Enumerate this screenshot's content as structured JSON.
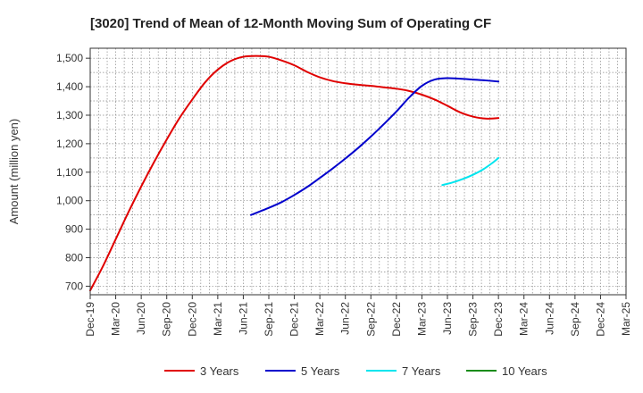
{
  "chart_data": {
    "type": "line",
    "title": "[3020]  Trend of Mean of 12-Month Moving Sum of Operating CF",
    "xlabel": "",
    "ylabel": "Amount (million yen)",
    "ylim": [
      670,
      1535
    ],
    "yticks": [
      700,
      800,
      900,
      1000,
      1100,
      1200,
      1300,
      1400,
      1500
    ],
    "ytick_labels": [
      "700",
      "800",
      "900",
      "1,000",
      "1,100",
      "1,200",
      "1,300",
      "1,400",
      "1,500"
    ],
    "x_categories": [
      "Dec-19",
      "Mar-20",
      "Jun-20",
      "Sep-20",
      "Dec-20",
      "Mar-21",
      "Jun-21",
      "Sep-21",
      "Dec-21",
      "Mar-22",
      "Jun-22",
      "Sep-22",
      "Dec-22",
      "Mar-23",
      "Jun-23",
      "Sep-23",
      "Dec-23",
      "Mar-24",
      "Jun-24",
      "Sep-24",
      "Dec-24",
      "Mar-25"
    ],
    "grid": true,
    "legend_position": "bottom",
    "series": [
      {
        "name": "3 Years",
        "color": "#e00000",
        "x": [
          0,
          0.5,
          1,
          1.5,
          2,
          2.5,
          3,
          3.5,
          4,
          4.5,
          5,
          5.5,
          6,
          6.5,
          7,
          7.5,
          8,
          8.5,
          9,
          9.5,
          10,
          10.5,
          11,
          11.5,
          12,
          12.5,
          13,
          13.5,
          14,
          14.5,
          15,
          15.5,
          16,
          16.5,
          17
        ],
        "values": [
          685,
          770,
          865,
          960,
          1050,
          1135,
          1215,
          1290,
          1355,
          1415,
          1460,
          1490,
          1505,
          1508,
          1505,
          1492,
          1475,
          1452,
          1433,
          1420,
          1412,
          1407,
          1403,
          1398,
          1393,
          1385,
          1372,
          1355,
          1333,
          1310,
          1295,
          1288,
          1290,
          null,
          null
        ],
        "x_override": [
          0,
          0.5,
          1,
          1.5,
          2,
          2.5,
          3,
          3.5,
          4,
          4.5,
          5,
          5.5,
          6,
          6.5,
          7,
          7.5,
          8,
          8.5,
          9,
          9.5,
          10,
          10.5,
          11,
          11.5,
          12,
          12.5,
          13,
          13.5,
          14,
          14.5,
          15,
          15.5,
          16
        ]
      },
      {
        "name": "5 Years",
        "color": "#0000cc",
        "x": [
          6.3,
          7,
          7.5,
          8,
          8.5,
          9,
          9.5,
          10,
          10.5,
          11,
          11.5,
          12,
          12.5,
          13,
          13.5,
          14,
          14.5,
          15,
          15.5,
          16
        ],
        "values": [
          950,
          975,
          995,
          1020,
          1048,
          1080,
          1113,
          1148,
          1185,
          1225,
          1268,
          1313,
          1362,
          1403,
          1425,
          1430,
          1428,
          1425,
          1422,
          1418
        ]
      },
      {
        "name": "7 Years",
        "color": "#00e5ee",
        "x": [
          13.8,
          14.2,
          14.6,
          15,
          15.4,
          15.8,
          16
        ],
        "values": [
          1055,
          1064,
          1076,
          1091,
          1110,
          1135,
          1150
        ]
      },
      {
        "name": "10 Years",
        "color": "#1a8c1a",
        "x": [],
        "values": []
      }
    ]
  }
}
